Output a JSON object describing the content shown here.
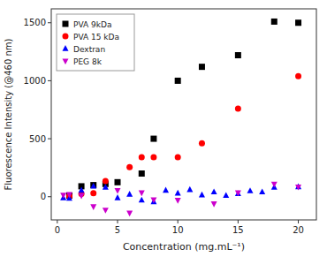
{
  "chart_data": {
    "type": "scatter",
    "xlabel": "Concentration (mg.mL⁻¹)",
    "ylabel": "Fluorescence Intensity (@460 nm)",
    "xlim": [
      -0.5,
      21.5
    ],
    "ylim": [
      -200,
      1620
    ],
    "xticks": [
      0,
      5,
      10,
      15,
      20
    ],
    "yticks": [
      0,
      500,
      1000,
      1500
    ],
    "grid": false,
    "legend": "upper left",
    "series": [
      {
        "name": "PVA 9kDa",
        "color": "#000000",
        "marker": "square",
        "x": [
          1,
          2,
          3,
          4,
          5,
          7,
          8,
          10,
          12,
          15,
          18,
          20
        ],
        "values": [
          10,
          90,
          100,
          110,
          125,
          200,
          500,
          1000,
          1120,
          1220,
          1510,
          1500
        ]
      },
      {
        "name": "PVA 15 kDa",
        "color": "#ff0000",
        "marker": "circle",
        "x": [
          1,
          2,
          3,
          4,
          6,
          7,
          8,
          10,
          12,
          15,
          20
        ],
        "values": [
          5,
          25,
          30,
          135,
          255,
          340,
          340,
          340,
          460,
          760,
          1040
        ]
      },
      {
        "name": "Dextran",
        "color": "#0000ff",
        "marker": "triangle-up",
        "x": [
          0.5,
          1,
          2,
          3,
          4,
          5,
          6,
          7,
          8,
          9,
          10,
          11,
          12,
          13,
          14,
          15,
          16,
          17,
          18,
          20
        ],
        "values": [
          -10,
          -15,
          55,
          90,
          80,
          -10,
          20,
          -30,
          -45,
          55,
          30,
          60,
          15,
          40,
          10,
          25,
          50,
          40,
          80,
          85
        ]
      },
      {
        "name": "PEG 8k",
        "color": "#cc00cc",
        "marker": "triangle-down",
        "x": [
          0.5,
          1,
          2,
          3,
          4,
          5,
          6,
          7,
          8,
          10,
          13,
          15,
          18,
          20
        ],
        "values": [
          15,
          20,
          10,
          -85,
          -115,
          55,
          -140,
          35,
          -25,
          -30,
          -60,
          35,
          110,
          85
        ]
      }
    ]
  }
}
